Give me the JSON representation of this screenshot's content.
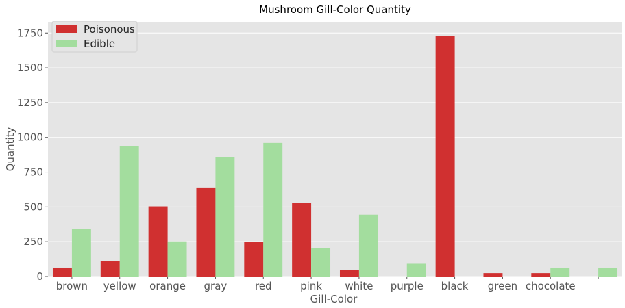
{
  "chart_data": {
    "type": "bar",
    "title": "Mushroom Gill-Color Quantity",
    "xlabel": "Gill-Color",
    "ylabel": "Quantity",
    "ylim": [
      0,
      1830
    ],
    "yticks": [
      0,
      250,
      500,
      750,
      1000,
      1250,
      1500,
      1750
    ],
    "grid": true,
    "legend_position": "top-left",
    "categories": [
      "brown",
      "yellow",
      "orange",
      "gray",
      "red",
      "pink",
      "white",
      "purple",
      "black",
      "green",
      "chocolate",
      ""
    ],
    "series": [
      {
        "name": "Poisonous",
        "color": "#d03030",
        "values": [
          64,
          112,
          504,
          640,
          248,
          528,
          48,
          0,
          1728,
          24,
          24,
          0
        ]
      },
      {
        "name": "Edible",
        "color": "#a3dd9e",
        "values": [
          344,
          936,
          252,
          856,
          960,
          204,
          444,
          96,
          0,
          0,
          64,
          64
        ]
      }
    ]
  }
}
